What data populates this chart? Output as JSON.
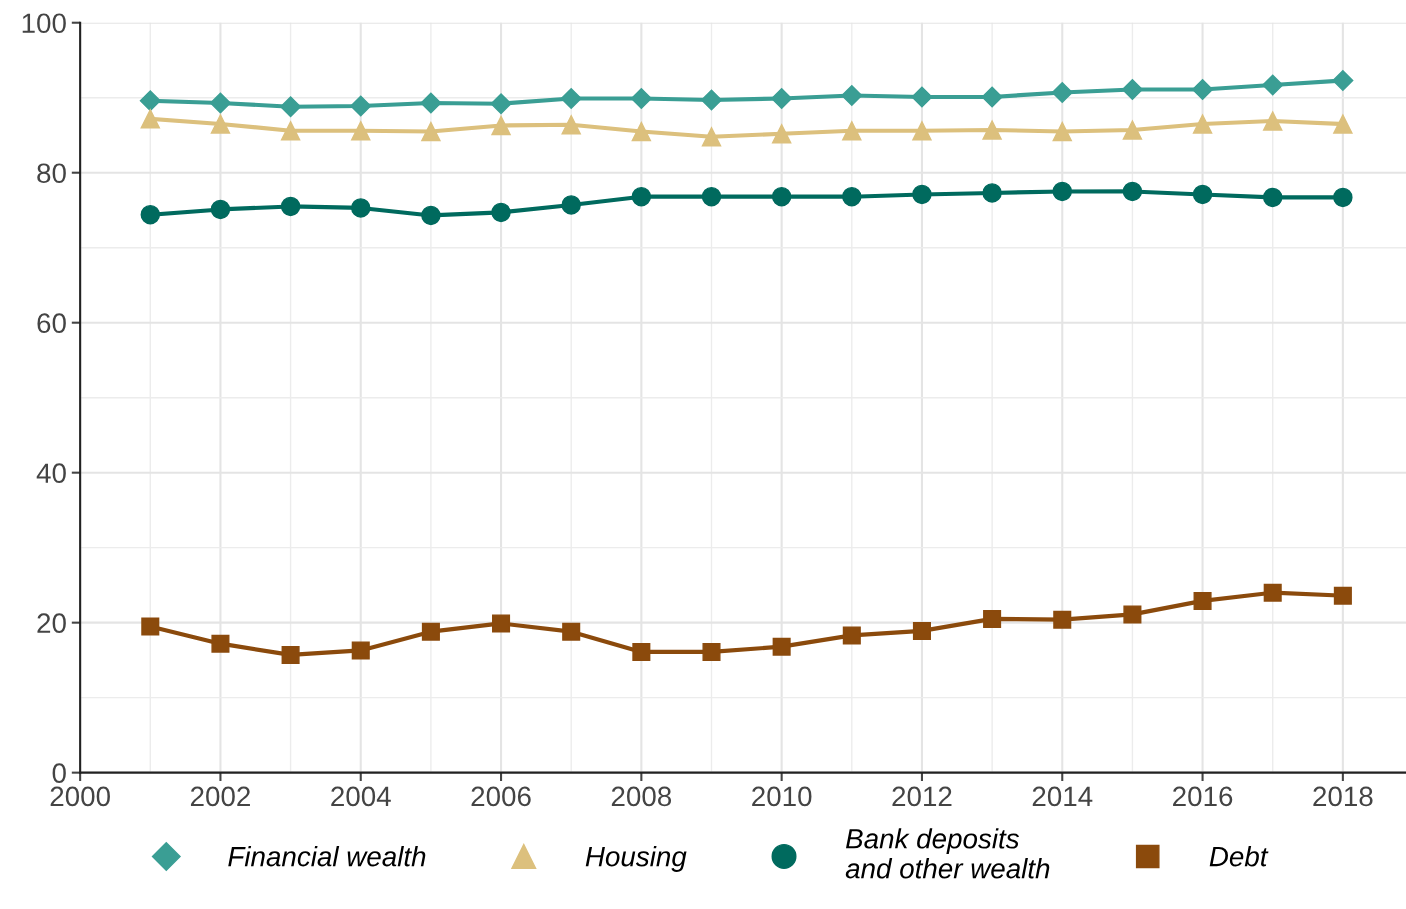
{
  "chart_data": {
    "type": "line",
    "x": [
      2001,
      2002,
      2003,
      2004,
      2005,
      2006,
      2007,
      2008,
      2009,
      2010,
      2011,
      2012,
      2013,
      2014,
      2015,
      2016,
      2017,
      2018
    ],
    "series": [
      {
        "name": "Financial wealth",
        "color": "#3a9e94",
        "marker": "diamond",
        "values": [
          89.6,
          89.3,
          88.8,
          88.9,
          89.3,
          89.2,
          89.9,
          89.9,
          89.7,
          89.9,
          90.3,
          90.1,
          90.1,
          90.7,
          91.1,
          91.1,
          91.7,
          92.3
        ]
      },
      {
        "name": "Housing",
        "color": "#dcc07d",
        "marker": "triangle",
        "values": [
          87.2,
          86.5,
          85.6,
          85.6,
          85.5,
          86.3,
          86.4,
          85.5,
          84.8,
          85.2,
          85.6,
          85.6,
          85.7,
          85.5,
          85.7,
          86.5,
          86.9,
          86.5
        ]
      },
      {
        "name": "Bank deposits\nand other wealth",
        "color": "#006a5e",
        "marker": "circle",
        "values": [
          74.4,
          75.1,
          75.5,
          75.3,
          74.3,
          74.7,
          75.7,
          76.8,
          76.8,
          76.8,
          76.8,
          77.1,
          77.3,
          77.5,
          77.5,
          77.1,
          76.7,
          76.7
        ]
      },
      {
        "name": "Debt",
        "color": "#8b4a0c",
        "marker": "square",
        "values": [
          19.5,
          17.2,
          15.7,
          16.3,
          18.8,
          19.9,
          18.8,
          16.1,
          16.1,
          16.8,
          18.3,
          18.9,
          20.5,
          20.4,
          21.1,
          22.9,
          24.0,
          23.6
        ]
      }
    ],
    "xlim": [
      2000,
      2018.9
    ],
    "xticks": [
      2000,
      2002,
      2004,
      2006,
      2008,
      2010,
      2012,
      2014,
      2016,
      2018
    ],
    "ylim": [
      0,
      100
    ],
    "yticks": [
      0,
      20,
      40,
      60,
      80,
      100
    ],
    "grid": true,
    "legend": "bottom",
    "line_style": "solid"
  }
}
